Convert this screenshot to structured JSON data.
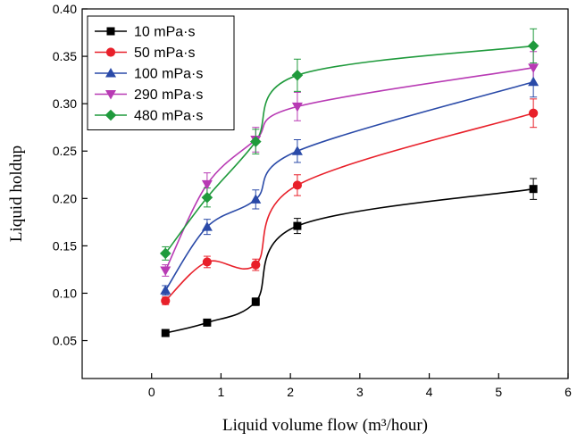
{
  "chart_data": {
    "type": "scatter",
    "xlabel": "Liquid volume flow (m³/hour)",
    "ylabel": "Liquid holdup",
    "xlim": [
      -1,
      6
    ],
    "ylim": [
      0.01,
      0.4
    ],
    "xticks": [
      0,
      1,
      2,
      3,
      4,
      5,
      6
    ],
    "yticks": [
      0.05,
      0.1,
      0.15,
      0.2,
      0.25,
      0.3,
      0.35,
      0.4
    ],
    "ytick_labels": [
      "0.05",
      "0.10",
      "0.15",
      "0.20",
      "0.25",
      "0.30",
      "0.35",
      "0.40"
    ],
    "grid": false,
    "legend_position": "top-left",
    "fit_curves": true,
    "x": [
      0.2,
      0.8,
      1.5,
      2.1,
      5.5
    ],
    "series": [
      {
        "name": "10 mPa·s",
        "marker": "square",
        "color": "#000000",
        "values": [
          0.058,
          0.069,
          0.091,
          0.171,
          0.21
        ],
        "errors": [
          0.003,
          0.003,
          0.004,
          0.008,
          0.011
        ]
      },
      {
        "name": "50 mPa·s",
        "marker": "circle",
        "color": "#e8202a",
        "values": [
          0.092,
          0.133,
          0.13,
          0.214,
          0.29
        ],
        "errors": [
          0.004,
          0.006,
          0.006,
          0.011,
          0.015
        ]
      },
      {
        "name": "100 mPa·s",
        "marker": "triangle-up",
        "color": "#2a4aa8",
        "values": [
          0.103,
          0.17,
          0.199,
          0.25,
          0.323
        ],
        "errors": [
          0.005,
          0.008,
          0.01,
          0.012,
          0.016
        ]
      },
      {
        "name": "290 mPa·s",
        "marker": "triangle-down",
        "color": "#b83ab4",
        "values": [
          0.124,
          0.215,
          0.262,
          0.297,
          0.338
        ],
        "errors": [
          0.006,
          0.012,
          0.013,
          0.015,
          0.017
        ]
      },
      {
        "name": "480 mPa·s",
        "marker": "diamond",
        "color": "#1f9a3c",
        "values": [
          0.142,
          0.201,
          0.26,
          0.33,
          0.361
        ],
        "errors": [
          0.007,
          0.01,
          0.013,
          0.017,
          0.018
        ]
      }
    ]
  }
}
